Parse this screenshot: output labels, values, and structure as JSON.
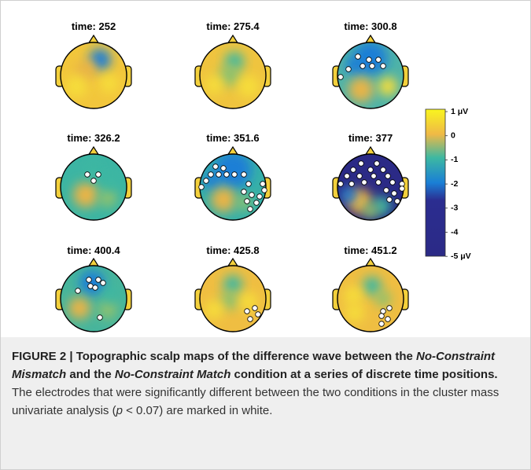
{
  "panels": [
    {
      "title": "time: 252"
    },
    {
      "title": "time: 275.4"
    },
    {
      "title": "time: 300.8"
    },
    {
      "title": "time: 326.2"
    },
    {
      "title": "time: 351.6"
    },
    {
      "title": "time: 377"
    },
    {
      "title": "time: 400.4"
    },
    {
      "title": "time: 425.8"
    },
    {
      "title": "time: 451.2"
    }
  ],
  "colorbar": {
    "labels": [
      "1 μV",
      "0",
      "-1",
      "-2",
      "-3",
      "-4",
      "-5 μV"
    ]
  },
  "caption": {
    "segments": [
      "FIGURE 2 | Topographic scalp maps of the difference wave between the ",
      "No-Constraint Mismatch",
      " and the ",
      "No-Constraint Match",
      " condition at a series of discrete time positions.",
      " The electrodes that were significantly different between the two conditions in the cluster mass univariate analysis (",
      "p",
      " < 0.07) are marked in white."
    ]
  }
}
